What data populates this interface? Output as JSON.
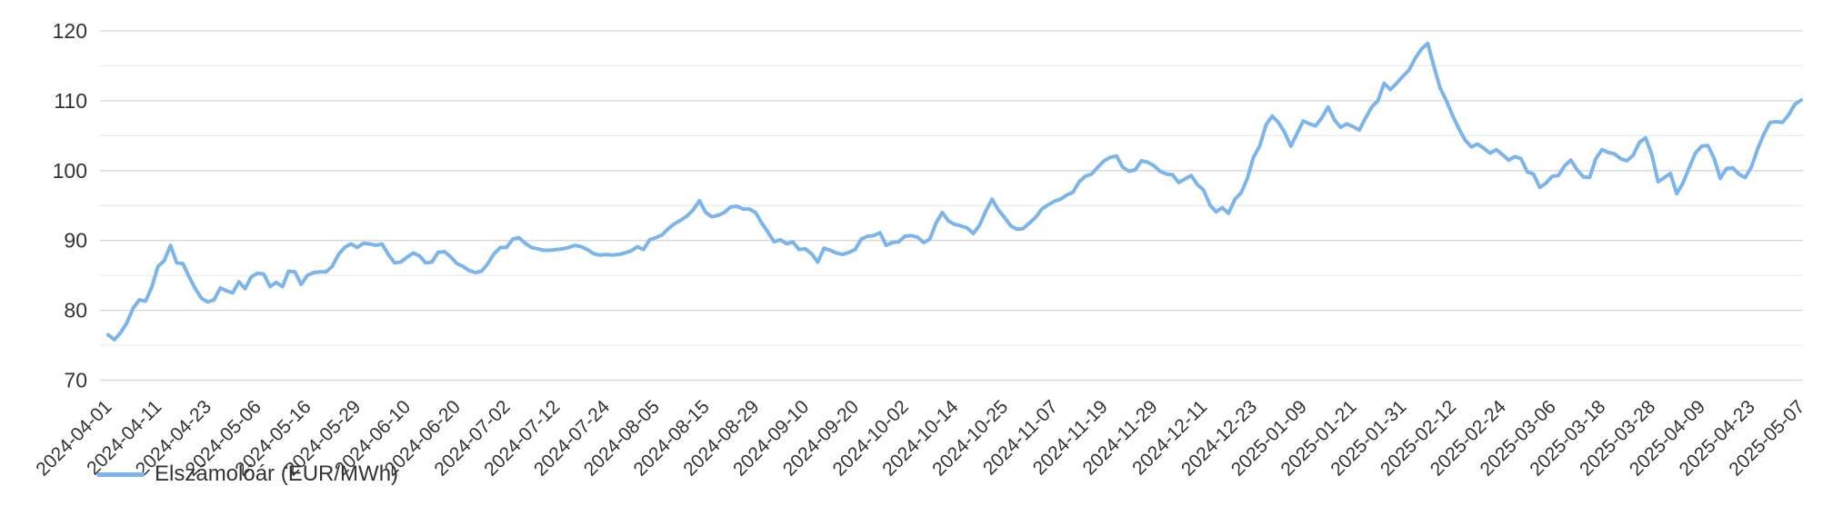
{
  "page": {
    "background": "#ffffff"
  },
  "legend": {
    "label": "Elszámolóár (EUR/MWh)",
    "marker_color": "#7cb5ec"
  },
  "chart_data": {
    "type": "line",
    "title": "",
    "xlabel": "",
    "ylabel": "",
    "ylim": [
      70,
      120
    ],
    "y_ticks": [
      70,
      80,
      90,
      100,
      110,
      120
    ],
    "y_minor_step": 5,
    "grid": {
      "horizontal": true,
      "vertical": false,
      "major_color": "#d7d7d7",
      "minor_color": "#ececec"
    },
    "axis_label_color": "#333333",
    "legend_position": "bottom-left",
    "x_type": "consecutive trading days",
    "x_tick_every_n_points": 8,
    "x_tick_labels": [
      "2024-04-01",
      "2024-04-11",
      "2024-04-23",
      "2024-05-06",
      "2024-05-16",
      "2024-05-29",
      "2024-06-10",
      "2024-06-20",
      "2024-07-02",
      "2024-07-12",
      "2024-07-24",
      "2024-08-05",
      "2024-08-15",
      "2024-08-29",
      "2024-09-10",
      "2024-09-20",
      "2024-10-02",
      "2024-10-14",
      "2024-10-25",
      "2024-11-07",
      "2024-11-19",
      "2024-11-29",
      "2024-12-11",
      "2024-12-23",
      "2025-01-09",
      "2025-01-21",
      "2025-01-31",
      "2025-02-12",
      "2025-02-24",
      "2025-03-06",
      "2025-03-18",
      "2025-03-28",
      "2025-04-09",
      "2025-04-23",
      "2025-05-07"
    ],
    "series": [
      {
        "name": "Elszámolóár (EUR/MWh)",
        "color": "#7cb5ec",
        "line_width": 4,
        "values": [
          76.5,
          75.8,
          76.8,
          78.2,
          80.3,
          81.5,
          81.3,
          83.3,
          86.3,
          87.1,
          89.3,
          86.8,
          86.7,
          84.8,
          83.1,
          81.7,
          81.2,
          81.5,
          83.2,
          82.8,
          82.5,
          84.1,
          83.1,
          84.8,
          85.3,
          85.2,
          83.4,
          84.0,
          83.4,
          85.6,
          85.5,
          83.7,
          85.0,
          85.4,
          85.5,
          85.5,
          86.3,
          88.0,
          89.0,
          89.5,
          89.0,
          89.6,
          89.5,
          89.3,
          89.5,
          88.0,
          86.8,
          86.9,
          87.6,
          88.2,
          87.8,
          86.8,
          86.9,
          88.3,
          88.4,
          87.7,
          86.7,
          86.3,
          85.7,
          85.4,
          85.6,
          86.7,
          88.1,
          89.0,
          89.0,
          90.2,
          90.4,
          89.6,
          89.0,
          88.8,
          88.6,
          88.6,
          88.7,
          88.8,
          89.0,
          89.3,
          89.1,
          88.7,
          88.1,
          87.9,
          88.0,
          87.9,
          88.0,
          88.2,
          88.5,
          89.1,
          88.7,
          90.1,
          90.4,
          90.8,
          91.7,
          92.4,
          92.9,
          93.5,
          94.4,
          95.7,
          94.0,
          93.4,
          93.6,
          94.0,
          94.8,
          94.9,
          94.5,
          94.5,
          94.0,
          92.5,
          91.2,
          89.8,
          90.1,
          89.5,
          89.8,
          88.7,
          88.8,
          88.1,
          86.9,
          88.9,
          88.6,
          88.2,
          88.0,
          88.3,
          88.7,
          90.2,
          90.6,
          90.7,
          91.1,
          89.3,
          89.7,
          89.8,
          90.6,
          90.7,
          90.5,
          89.7,
          90.2,
          92.5,
          94.0,
          92.8,
          92.3,
          92.1,
          91.8,
          91.0,
          92.2,
          94.2,
          95.9,
          94.4,
          93.3,
          92.1,
          91.6,
          91.7,
          92.5,
          93.3,
          94.5,
          95.1,
          95.6,
          95.9,
          96.5,
          96.9,
          98.4,
          99.2,
          99.5,
          100.5,
          101.4,
          101.9,
          102.1,
          100.5,
          99.9,
          100.1,
          101.4,
          101.2,
          100.7,
          99.9,
          99.5,
          99.4,
          98.3,
          98.8,
          99.3,
          98.0,
          97.2,
          95.1,
          94.1,
          94.7,
          93.9,
          95.9,
          96.8,
          98.8,
          101.9,
          103.5,
          106.5,
          107.8,
          106.9,
          105.5,
          103.5,
          105.3,
          107.1,
          106.7,
          106.4,
          107.6,
          109.1,
          107.3,
          106.2,
          106.7,
          106.3,
          105.8,
          107.5,
          109.1,
          110.0,
          112.5,
          111.6,
          112.5,
          113.5,
          114.4,
          116.1,
          117.4,
          118.2,
          114.9,
          111.8,
          110.0,
          107.9,
          106.0,
          104.4,
          103.4,
          103.8,
          103.2,
          102.5,
          103.0,
          102.3,
          101.5,
          102.0,
          101.7,
          99.8,
          99.5,
          97.6,
          98.2,
          99.2,
          99.3,
          100.7,
          101.5,
          100.1,
          99.1,
          99.0,
          101.7,
          103.0,
          102.6,
          102.4,
          101.7,
          101.4,
          102.2,
          104.0,
          104.7,
          102.3,
          98.4,
          99.0,
          99.6,
          96.7,
          98.2,
          100.4,
          102.5,
          103.5,
          103.6,
          101.8,
          98.9,
          100.3,
          100.4,
          99.5,
          99.0,
          100.5,
          103.1,
          105.2,
          106.9,
          107.0,
          106.9,
          108.0,
          109.5,
          110.1
        ]
      }
    ]
  }
}
